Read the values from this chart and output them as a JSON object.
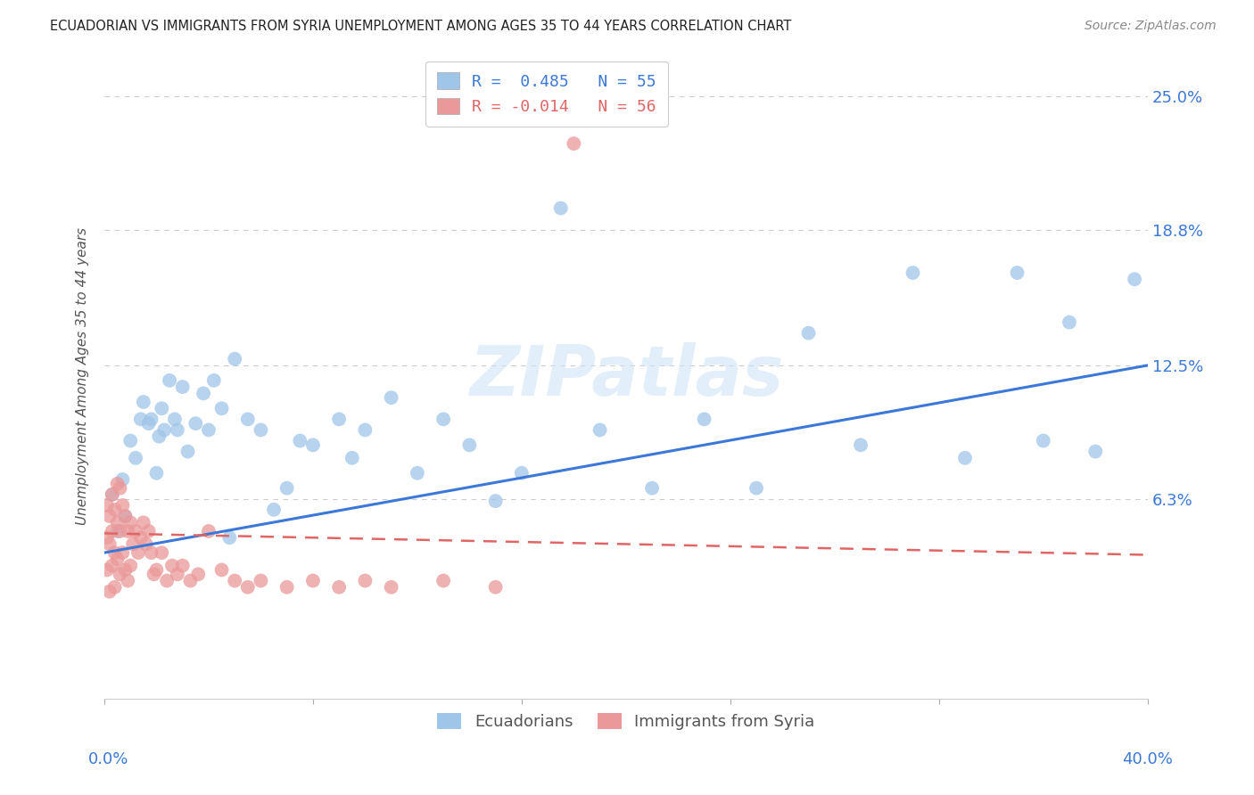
{
  "title": "ECUADORIAN VS IMMIGRANTS FROM SYRIA UNEMPLOYMENT AMONG AGES 35 TO 44 YEARS CORRELATION CHART",
  "source": "Source: ZipAtlas.com",
  "ylabel": "Unemployment Among Ages 35 to 44 years",
  "ytick_labels": [
    "25.0%",
    "18.8%",
    "12.5%",
    "6.3%"
  ],
  "ytick_values": [
    0.25,
    0.188,
    0.125,
    0.063
  ],
  "xmin": 0.0,
  "xmax": 0.4,
  "ymin": -0.03,
  "ymax": 0.27,
  "legend_R1": "R =  0.485   N = 55",
  "legend_R2": "R = -0.014   N = 56",
  "blue_color": "#9fc5e8",
  "pink_color": "#ea9999",
  "blue_line_color": "#3c78d8",
  "pink_line_color": "#e06666",
  "grid_color": "#cccccc",
  "background_color": "#ffffff",
  "watermark": "ZIPatlas",
  "blue_regression": [
    0.038,
    0.125
  ],
  "pink_regression": [
    0.047,
    0.037
  ],
  "ecuadorians_x": [
    0.003,
    0.005,
    0.007,
    0.008,
    0.01,
    0.012,
    0.014,
    0.015,
    0.017,
    0.018,
    0.02,
    0.021,
    0.022,
    0.023,
    0.025,
    0.027,
    0.028,
    0.03,
    0.032,
    0.035,
    0.038,
    0.04,
    0.042,
    0.045,
    0.048,
    0.05,
    0.055,
    0.06,
    0.065,
    0.07,
    0.075,
    0.08,
    0.09,
    0.095,
    0.1,
    0.11,
    0.12,
    0.13,
    0.14,
    0.15,
    0.16,
    0.175,
    0.19,
    0.21,
    0.23,
    0.25,
    0.27,
    0.29,
    0.31,
    0.33,
    0.35,
    0.36,
    0.37,
    0.38,
    0.395
  ],
  "ecuadorians_y": [
    0.065,
    0.048,
    0.072,
    0.055,
    0.09,
    0.082,
    0.1,
    0.108,
    0.098,
    0.1,
    0.075,
    0.092,
    0.105,
    0.095,
    0.118,
    0.1,
    0.095,
    0.115,
    0.085,
    0.098,
    0.112,
    0.095,
    0.118,
    0.105,
    0.045,
    0.128,
    0.1,
    0.095,
    0.058,
    0.068,
    0.09,
    0.088,
    0.1,
    0.082,
    0.095,
    0.11,
    0.075,
    0.1,
    0.088,
    0.062,
    0.075,
    0.198,
    0.095,
    0.068,
    0.1,
    0.068,
    0.14,
    0.088,
    0.168,
    0.082,
    0.168,
    0.09,
    0.145,
    0.085,
    0.165
  ],
  "syria_x": [
    0.001,
    0.001,
    0.001,
    0.002,
    0.002,
    0.002,
    0.003,
    0.003,
    0.003,
    0.004,
    0.004,
    0.004,
    0.005,
    0.005,
    0.005,
    0.006,
    0.006,
    0.006,
    0.007,
    0.007,
    0.008,
    0.008,
    0.009,
    0.009,
    0.01,
    0.01,
    0.011,
    0.012,
    0.013,
    0.014,
    0.015,
    0.016,
    0.017,
    0.018,
    0.019,
    0.02,
    0.022,
    0.024,
    0.026,
    0.028,
    0.03,
    0.033,
    0.036,
    0.04,
    0.045,
    0.05,
    0.055,
    0.06,
    0.07,
    0.08,
    0.09,
    0.1,
    0.11,
    0.13,
    0.15,
    0.18
  ],
  "syria_y": [
    0.06,
    0.045,
    0.03,
    0.055,
    0.042,
    0.02,
    0.065,
    0.048,
    0.032,
    0.058,
    0.038,
    0.022,
    0.07,
    0.052,
    0.035,
    0.068,
    0.048,
    0.028,
    0.06,
    0.038,
    0.055,
    0.03,
    0.048,
    0.025,
    0.052,
    0.032,
    0.042,
    0.048,
    0.038,
    0.045,
    0.052,
    0.042,
    0.048,
    0.038,
    0.028,
    0.03,
    0.038,
    0.025,
    0.032,
    0.028,
    0.032,
    0.025,
    0.028,
    0.048,
    0.03,
    0.025,
    0.022,
    0.025,
    0.022,
    0.025,
    0.022,
    0.025,
    0.022,
    0.025,
    0.022,
    0.228
  ]
}
